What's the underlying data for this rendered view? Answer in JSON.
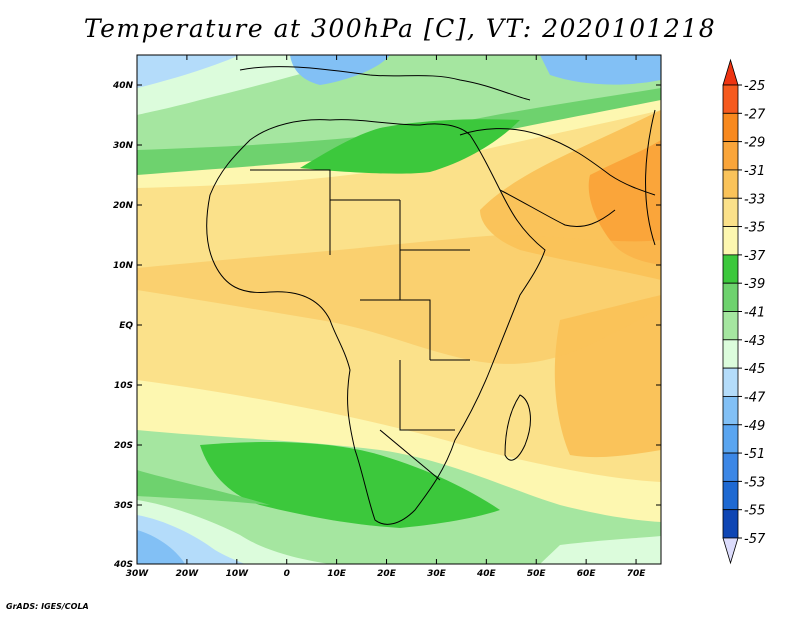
{
  "title": "Temperature at 300hPa [C], VT: 2020101218",
  "footer": "GrADS: IGES/COLA",
  "map": {
    "lon_labels": [
      "30W",
      "20W",
      "10W",
      "0",
      "10E",
      "20E",
      "30E",
      "40E",
      "50E",
      "60E",
      "70E"
    ],
    "lat_labels": [
      "40N",
      "30N",
      "20N",
      "10N",
      "EQ",
      "10S",
      "20S",
      "30S",
      "40S"
    ]
  },
  "colorbar": {
    "levels": [
      "-25",
      "-27",
      "-29",
      "-31",
      "-33",
      "-35",
      "-37",
      "-39",
      "-41",
      "-43",
      "-45",
      "-47",
      "-49",
      "-51",
      "-53",
      "-55",
      "-57"
    ],
    "colors": [
      "#f55a1e",
      "#f8891e",
      "#faa53a",
      "#fac35a",
      "#fbe18a",
      "#fdf7b0",
      "#3cc83c",
      "#6ed26e",
      "#a5e6a0",
      "#dcfcdc",
      "#b4dcfa",
      "#82c0f5",
      "#5aa5f0",
      "#3c87e6",
      "#1e69d2",
      "#0f46b4",
      "#0a1e7d"
    ],
    "top_color": "#ee3411",
    "bottom_color": "#dcdcfc"
  }
}
